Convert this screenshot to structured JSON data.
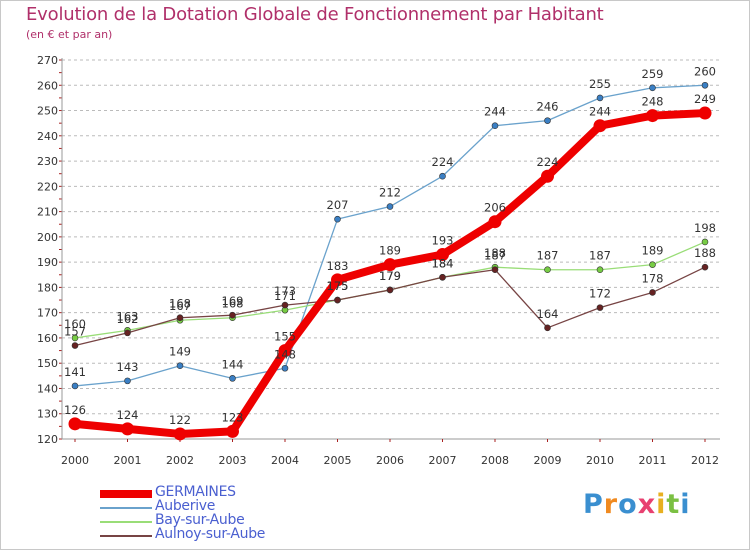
{
  "title": "Evolution de la Dotation Globale de Fonctionnement par Habitant",
  "subtitle": "(en € et par an)",
  "colors": {
    "title": "#b0306a",
    "grid": "#bbbbbb",
    "axis": "#aa2222",
    "legend_text": "#4a5fd0"
  },
  "chart_data": {
    "type": "line",
    "title": "Evolution de la Dotation Globale de Fonctionnement par Habitant",
    "subtitle": "(en € et par an)",
    "xlabel": "",
    "ylabel": "",
    "ylim": [
      120,
      270
    ],
    "y_ticks": [
      120,
      130,
      140,
      150,
      160,
      170,
      180,
      190,
      200,
      210,
      220,
      230,
      240,
      250,
      260,
      270
    ],
    "categories": [
      "2000",
      "2001",
      "2002",
      "2003",
      "2004",
      "2005",
      "2006",
      "2007",
      "2008",
      "2009",
      "2010",
      "2011",
      "2012"
    ],
    "grid": "horizontal-dashed",
    "legend_position": "bottom-left",
    "series": [
      {
        "name": "GERMAINES",
        "color": "#ee0000",
        "marker": "#ee0000",
        "emphasis": true,
        "values": [
          126,
          124,
          122,
          123,
          155,
          183,
          189,
          193,
          206,
          224,
          244,
          248,
          249
        ]
      },
      {
        "name": "Auberive",
        "color": "#6aa2cc",
        "marker": "#3a7fc4",
        "emphasis": false,
        "values": [
          141,
          143,
          149,
          144,
          148,
          207,
          212,
          224,
          244,
          246,
          255,
          259,
          260
        ]
      },
      {
        "name": "Bay-sur-Aube",
        "color": "#99dd77",
        "marker": "#77cc44",
        "emphasis": false,
        "values": [
          160,
          163,
          167,
          168,
          171,
          175,
          179,
          184,
          188,
          187,
          187,
          189,
          198
        ]
      },
      {
        "name": "Aulnoy-sur-Aube",
        "color": "#774444",
        "marker": "#662222",
        "emphasis": false,
        "values": [
          157,
          162,
          168,
          169,
          173,
          175,
          179,
          184,
          187,
          164,
          172,
          178,
          188
        ]
      }
    ]
  },
  "logo": {
    "text": "Proxiti",
    "letter_colors": [
      "#3a8fd0",
      "#f08a20",
      "#3a8fd0",
      "#e84070",
      "#e8b020",
      "#7bc043",
      "#3a8fd0"
    ]
  }
}
